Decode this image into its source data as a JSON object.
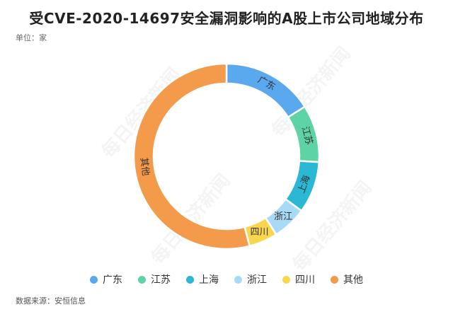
{
  "header": {
    "title": "受CVE-2020-14697安全漏洞影响的A股上市公司地域分布",
    "unit": "单位：家"
  },
  "footer": {
    "source": "数据来源：安恒信息"
  },
  "watermark": {
    "text": "每日经济新闻"
  },
  "colors": {
    "广东": "#5AA9EE",
    "江苏": "#5ED3A4",
    "上海": "#2AB8D5",
    "浙江": "#A8DAF5",
    "四川": "#F8D64E",
    "其他": "#F39A4B"
  },
  "chart_data": {
    "type": "pie",
    "donut": true,
    "title": "受CVE-2020-14697安全漏洞影响的A股上市公司地域分布",
    "unit": "家",
    "legend_position": "bottom",
    "categories": [
      "广东",
      "江苏",
      "上海",
      "浙江",
      "四川",
      "其他"
    ],
    "values": [
      16,
      10,
      9,
      6,
      5,
      54
    ]
  }
}
